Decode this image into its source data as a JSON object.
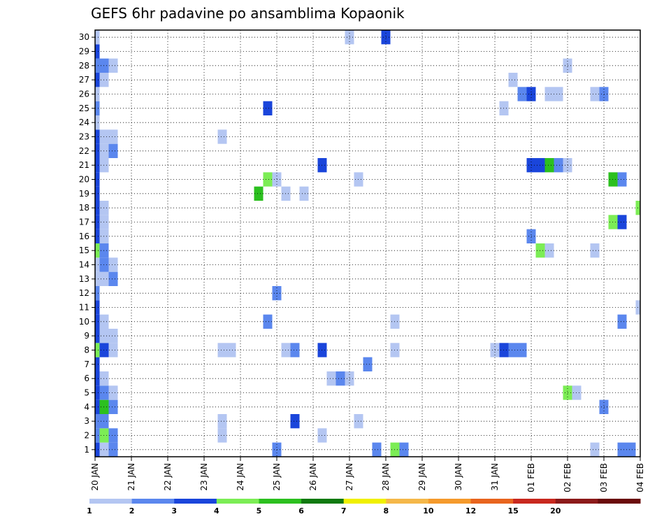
{
  "chart_data": {
    "type": "heatmap",
    "title": "GEFS 6hr padavine po ansamblima Kopaonik",
    "xlabel": "",
    "ylabel": "",
    "x_ticks": [
      "20 JAN",
      "21 JAN",
      "22 JAN",
      "23 JAN",
      "24 JAN",
      "25 JAN",
      "26 JAN",
      "27 JAN",
      "28 JAN",
      "29 JAN",
      "30 JAN",
      "31 JAN",
      "01 FEB",
      "02 FEB",
      "03 FEB",
      "04 FEB"
    ],
    "y_ticks": [
      "1",
      "2",
      "3",
      "4",
      "5",
      "6",
      "7",
      "8",
      "9",
      "10",
      "11",
      "12",
      "13",
      "14",
      "15",
      "16",
      "17",
      "18",
      "19",
      "20",
      "21",
      "22",
      "23",
      "24",
      "25",
      "26",
      "27",
      "28",
      "29",
      "30"
    ],
    "xlim_steps": [
      0,
      60
    ],
    "ylim_members": [
      0.5,
      30.5
    ],
    "grid": true,
    "colorbar": {
      "labels": [
        "1",
        "2",
        "3",
        "4",
        "5",
        "6",
        "7",
        "8",
        "10",
        "12",
        "15",
        "20"
      ],
      "colors": [
        "#b4c6f2",
        "#5b87ee",
        "#1a45db",
        "#7ced55",
        "#2cc01f",
        "#107a10",
        "#f0f000",
        "#f5b84a",
        "#f59a2c",
        "#e8641e",
        "#c8281e",
        "#8c1a1a",
        "#6a0a0a"
      ]
    },
    "cells": [
      [
        0,
        0,
        3
      ],
      [
        0,
        1,
        2
      ],
      [
        0,
        2,
        2
      ],
      [
        0,
        3,
        3
      ],
      [
        0,
        4,
        3
      ],
      [
        0,
        5,
        3
      ],
      [
        0,
        6,
        3
      ],
      [
        0,
        7,
        4
      ],
      [
        0,
        8,
        3
      ],
      [
        0,
        9,
        3
      ],
      [
        0,
        10,
        3
      ],
      [
        0,
        11,
        2
      ],
      [
        0,
        12,
        1
      ],
      [
        0,
        13,
        1
      ],
      [
        0,
        14,
        4
      ],
      [
        0,
        15,
        3
      ],
      [
        0,
        16,
        3
      ],
      [
        0,
        17,
        3
      ],
      [
        0,
        18,
        3
      ],
      [
        0,
        19,
        3
      ],
      [
        0,
        20,
        3
      ],
      [
        0,
        21,
        3
      ],
      [
        0,
        22,
        3
      ],
      [
        0,
        23,
        1
      ],
      [
        0,
        24,
        2
      ],
      [
        0,
        25,
        1
      ],
      [
        0,
        26,
        3
      ],
      [
        0,
        27,
        2
      ],
      [
        0,
        28,
        3
      ],
      [
        0,
        29,
        1
      ],
      [
        1,
        0,
        1
      ],
      [
        1,
        1,
        4
      ],
      [
        1,
        2,
        2
      ],
      [
        1,
        3,
        5
      ],
      [
        1,
        4,
        2
      ],
      [
        1,
        5,
        1
      ],
      [
        1,
        7,
        3
      ],
      [
        1,
        8,
        1
      ],
      [
        1,
        9,
        1
      ],
      [
        1,
        12,
        1
      ],
      [
        1,
        13,
        2
      ],
      [
        1,
        14,
        2
      ],
      [
        1,
        15,
        1
      ],
      [
        1,
        16,
        1
      ],
      [
        1,
        17,
        1
      ],
      [
        1,
        20,
        1
      ],
      [
        1,
        21,
        1
      ],
      [
        1,
        22,
        1
      ],
      [
        1,
        26,
        1
      ],
      [
        1,
        27,
        2
      ],
      [
        2,
        0,
        2
      ],
      [
        2,
        1,
        2
      ],
      [
        2,
        3,
        2
      ],
      [
        2,
        4,
        1
      ],
      [
        2,
        7,
        1
      ],
      [
        2,
        8,
        1
      ],
      [
        2,
        12,
        2
      ],
      [
        2,
        13,
        1
      ],
      [
        2,
        21,
        2
      ],
      [
        2,
        22,
        1
      ],
      [
        2,
        27,
        1
      ],
      [
        14,
        1,
        1
      ],
      [
        14,
        2,
        1
      ],
      [
        14,
        7,
        1
      ],
      [
        15,
        7,
        1
      ],
      [
        14,
        22,
        1
      ],
      [
        18,
        18,
        5
      ],
      [
        19,
        9,
        2
      ],
      [
        19,
        19,
        4
      ],
      [
        19,
        24,
        3
      ],
      [
        20,
        0,
        2
      ],
      [
        20,
        11,
        2
      ],
      [
        20,
        19,
        1
      ],
      [
        21,
        7,
        1
      ],
      [
        21,
        18,
        1
      ],
      [
        22,
        7,
        2
      ],
      [
        22,
        2,
        3
      ],
      [
        23,
        18,
        1
      ],
      [
        25,
        1,
        1
      ],
      [
        25,
        7,
        3
      ],
      [
        25,
        20,
        3
      ],
      [
        26,
        5,
        1
      ],
      [
        27,
        5,
        2
      ],
      [
        28,
        5,
        1
      ],
      [
        28,
        29,
        1
      ],
      [
        29,
        2,
        1
      ],
      [
        29,
        19,
        1
      ],
      [
        30,
        6,
        2
      ],
      [
        31,
        0,
        2
      ],
      [
        32,
        29,
        3
      ],
      [
        33,
        0,
        4
      ],
      [
        34,
        0,
        2
      ],
      [
        33,
        7,
        1
      ],
      [
        33,
        9,
        1
      ],
      [
        44,
        7,
        1
      ],
      [
        45,
        7,
        3
      ],
      [
        46,
        7,
        2
      ],
      [
        47,
        7,
        2
      ],
      [
        45,
        24,
        1
      ],
      [
        46,
        26,
        1
      ],
      [
        47,
        25,
        2
      ],
      [
        48,
        15,
        2
      ],
      [
        48,
        20,
        3
      ],
      [
        48,
        25,
        3
      ],
      [
        49,
        14,
        4
      ],
      [
        49,
        20,
        3
      ],
      [
        50,
        14,
        1
      ],
      [
        50,
        20,
        5
      ],
      [
        50,
        25,
        1
      ],
      [
        51,
        20,
        2
      ],
      [
        51,
        25,
        1
      ],
      [
        52,
        4,
        4
      ],
      [
        52,
        20,
        1
      ],
      [
        52,
        27,
        1
      ],
      [
        53,
        4,
        1
      ],
      [
        55,
        0,
        1
      ],
      [
        55,
        14,
        1
      ],
      [
        55,
        25,
        1
      ],
      [
        56,
        3,
        2
      ],
      [
        56,
        25,
        2
      ],
      [
        57,
        16,
        4
      ],
      [
        57,
        19,
        5
      ],
      [
        58,
        0,
        2
      ],
      [
        58,
        9,
        2
      ],
      [
        58,
        16,
        3
      ],
      [
        58,
        19,
        2
      ],
      [
        59,
        0,
        2
      ],
      [
        60,
        10,
        1
      ],
      [
        60,
        17,
        4
      ]
    ]
  }
}
